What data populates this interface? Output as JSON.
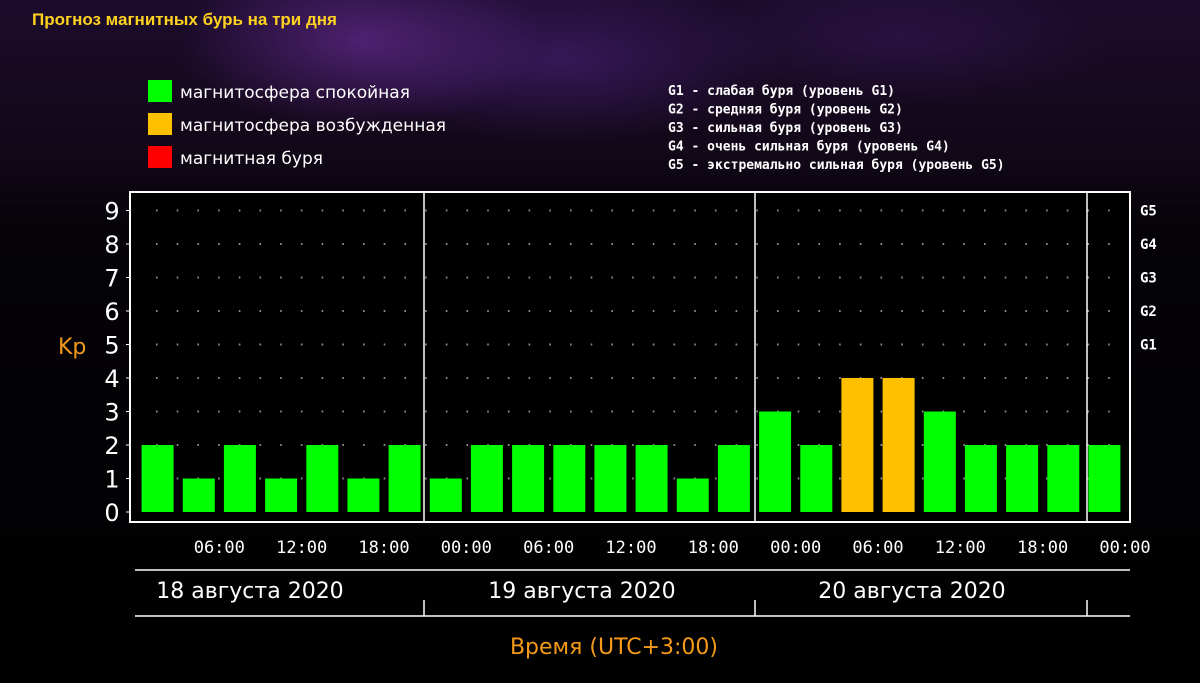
{
  "page_title": "Прогноз магнитных бурь на три дня",
  "legend": [
    {
      "label": "магнитосфера спокойная",
      "color": "#00ff00"
    },
    {
      "label": "магнитосфера возбужденная",
      "color": "#ffc000"
    },
    {
      "label": "магнитная буря",
      "color": "#ff0000"
    }
  ],
  "storm_levels": [
    "G1 - слабая буря (уровень G1)",
    "G2 - средняя буря (уровень G2)",
    "G3 - сильная буря (уровень G3)",
    "G4 - очень сильная буря (уровень G4)",
    "G5 - экстремально сильная буря (уровень G5)"
  ],
  "chart_data": {
    "type": "bar",
    "ylabel": "Kp",
    "xlabel": "Время (UTC+3:00)",
    "ylim": [
      0,
      9
    ],
    "y_ticks": [
      "0",
      "1",
      "2",
      "3",
      "4",
      "5",
      "6",
      "7",
      "8",
      "9"
    ],
    "right_ticks": [
      {
        "label": "G1",
        "value": 5
      },
      {
        "label": "G2",
        "value": 6
      },
      {
        "label": "G3",
        "value": 7
      },
      {
        "label": "G4",
        "value": 8
      },
      {
        "label": "G5",
        "value": 9
      }
    ],
    "x_ticks": [
      "06:00",
      "12:00",
      "18:00",
      "00:00",
      "06:00",
      "12:00",
      "18:00",
      "00:00",
      "06:00",
      "12:00",
      "18:00",
      "00:00"
    ],
    "days": [
      "18 августа 2020",
      "19 августа 2020",
      "20 августа 2020"
    ],
    "grid": true,
    "colors": {
      "calm": "#00ff00",
      "active": "#ffc000",
      "storm": "#ff0000"
    },
    "values": [
      2,
      1,
      2,
      1,
      2,
      1,
      2,
      1,
      2,
      2,
      2,
      2,
      2,
      1,
      2,
      3,
      2,
      4,
      4,
      3,
      2,
      2,
      2,
      2
    ],
    "levels": [
      "calm",
      "calm",
      "calm",
      "calm",
      "calm",
      "calm",
      "calm",
      "calm",
      "calm",
      "calm",
      "calm",
      "calm",
      "calm",
      "calm",
      "calm",
      "calm",
      "calm",
      "active",
      "active",
      "calm",
      "calm",
      "calm",
      "calm",
      "calm"
    ]
  }
}
